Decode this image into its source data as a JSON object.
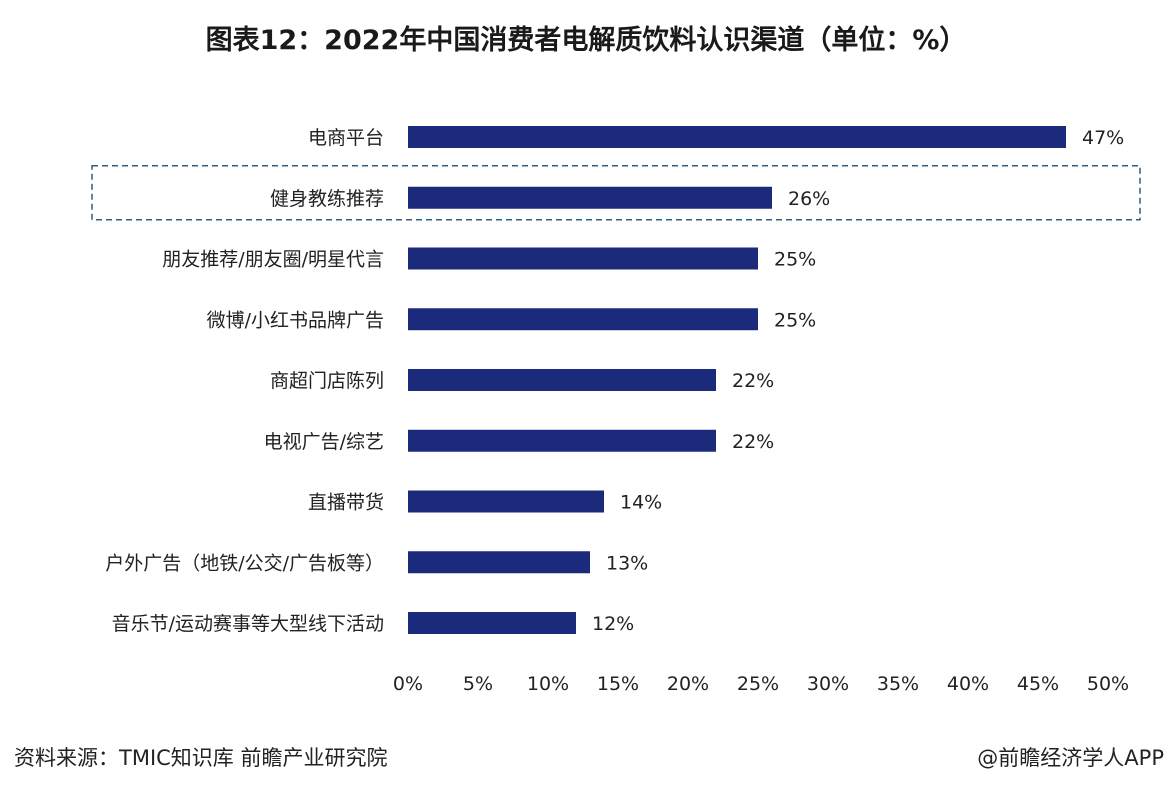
{
  "chart_data": {
    "type": "bar",
    "orientation": "horizontal",
    "title": "图表12：2022年中国消费者电解质饮料认识渠道（单位：%）",
    "categories": [
      "电商平台",
      "健身教练推荐",
      "朋友推荐/朋友圈/明星代言",
      "微博/小红书品牌广告",
      "商超门店陈列",
      "电视广告/综艺",
      "直播带货",
      "户外广告（地铁/公交/广告板等）",
      "音乐节/运动赛事等大型线下活动"
    ],
    "values": [
      47,
      26,
      25,
      25,
      22,
      22,
      14,
      13,
      12
    ],
    "data_labels": [
      "47%",
      "26%",
      "25%",
      "25%",
      "22%",
      "22%",
      "14%",
      "13%",
      "12%"
    ],
    "xlim": [
      0,
      50
    ],
    "xticks": [
      "0%",
      "5%",
      "10%",
      "15%",
      "20%",
      "25%",
      "30%",
      "35%",
      "40%",
      "45%",
      "50%"
    ],
    "grid": false,
    "highlighted_category": "健身教练推荐",
    "bar_color": "#1b2a7a"
  },
  "footer": {
    "source": "资料来源：TMIC知识库 前瞻产业研究院",
    "credit": "@前瞻经济学人APP"
  },
  "watermark": "前瞻产业研究院"
}
